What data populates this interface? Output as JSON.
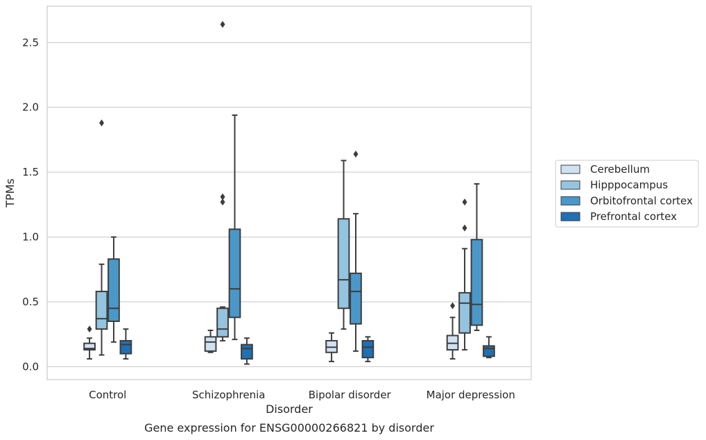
{
  "chart_data": {
    "type": "box",
    "title": "",
    "caption": "Gene expression for ENSG00000266821 by disorder",
    "xlabel": "Disorder",
    "ylabel": "TPMs",
    "ylim": [
      -0.1,
      2.78
    ],
    "yticks": [
      0.0,
      0.5,
      1.0,
      1.5,
      2.0,
      2.5
    ],
    "ytick_labels": [
      "0.0",
      "0.5",
      "1.0",
      "1.5",
      "2.0",
      "2.5"
    ],
    "grid": "horizontal",
    "legend_position": "right",
    "categories": [
      "Control",
      "Schizophrenia",
      "Bipolar disorder",
      "Major depression"
    ],
    "series": [
      {
        "name": "Cerebellum",
        "color": "#d0e1f2",
        "boxes": [
          {
            "whislo": 0.06,
            "q1": 0.13,
            "med": 0.14,
            "q3": 0.18,
            "whishi": 0.22,
            "fliers": [
              0.29
            ]
          },
          {
            "whislo": 0.11,
            "q1": 0.12,
            "med": 0.19,
            "q3": 0.23,
            "whishi": 0.28,
            "fliers": []
          },
          {
            "whislo": 0.04,
            "q1": 0.11,
            "med": 0.15,
            "q3": 0.2,
            "whishi": 0.26,
            "fliers": []
          },
          {
            "whislo": 0.06,
            "q1": 0.13,
            "med": 0.18,
            "q3": 0.24,
            "whishi": 0.38,
            "fliers": [
              0.47
            ]
          }
        ]
      },
      {
        "name": "Hipppocampus",
        "color": "#94c4df",
        "boxes": [
          {
            "whislo": 0.09,
            "q1": 0.29,
            "med": 0.37,
            "q3": 0.58,
            "whishi": 0.79,
            "fliers": [
              1.88
            ]
          },
          {
            "whislo": 0.2,
            "q1": 0.23,
            "med": 0.29,
            "q3": 0.45,
            "whishi": 0.46,
            "fliers": [
              1.27,
              1.31,
              2.64
            ]
          },
          {
            "whislo": 0.29,
            "q1": 0.45,
            "med": 0.67,
            "q3": 1.14,
            "whishi": 1.59,
            "fliers": []
          },
          {
            "whislo": 0.13,
            "q1": 0.26,
            "med": 0.49,
            "q3": 0.57,
            "whishi": 0.91,
            "fliers": [
              1.07,
              1.27
            ]
          }
        ]
      },
      {
        "name": "Orbitofrontal cortex",
        "color": "#4a98c9",
        "boxes": [
          {
            "whislo": 0.19,
            "q1": 0.35,
            "med": 0.45,
            "q3": 0.83,
            "whishi": 1.0,
            "fliers": []
          },
          {
            "whislo": 0.21,
            "q1": 0.38,
            "med": 0.6,
            "q3": 1.06,
            "whishi": 1.94,
            "fliers": []
          },
          {
            "whislo": 0.12,
            "q1": 0.33,
            "med": 0.58,
            "q3": 0.72,
            "whishi": 1.18,
            "fliers": [
              1.64
            ]
          },
          {
            "whislo": 0.28,
            "q1": 0.32,
            "med": 0.48,
            "q3": 0.98,
            "whishi": 1.41,
            "fliers": []
          }
        ]
      },
      {
        "name": "Prefrontal cortex",
        "color": "#2070b4",
        "boxes": [
          {
            "whislo": 0.06,
            "q1": 0.1,
            "med": 0.17,
            "q3": 0.2,
            "whishi": 0.29,
            "fliers": []
          },
          {
            "whislo": 0.02,
            "q1": 0.06,
            "med": 0.14,
            "q3": 0.17,
            "whishi": 0.22,
            "fliers": []
          },
          {
            "whislo": 0.04,
            "q1": 0.07,
            "med": 0.15,
            "q3": 0.2,
            "whishi": 0.23,
            "fliers": []
          },
          {
            "whislo": 0.07,
            "q1": 0.08,
            "med": 0.14,
            "q3": 0.16,
            "whishi": 0.23,
            "fliers": []
          }
        ]
      }
    ]
  }
}
